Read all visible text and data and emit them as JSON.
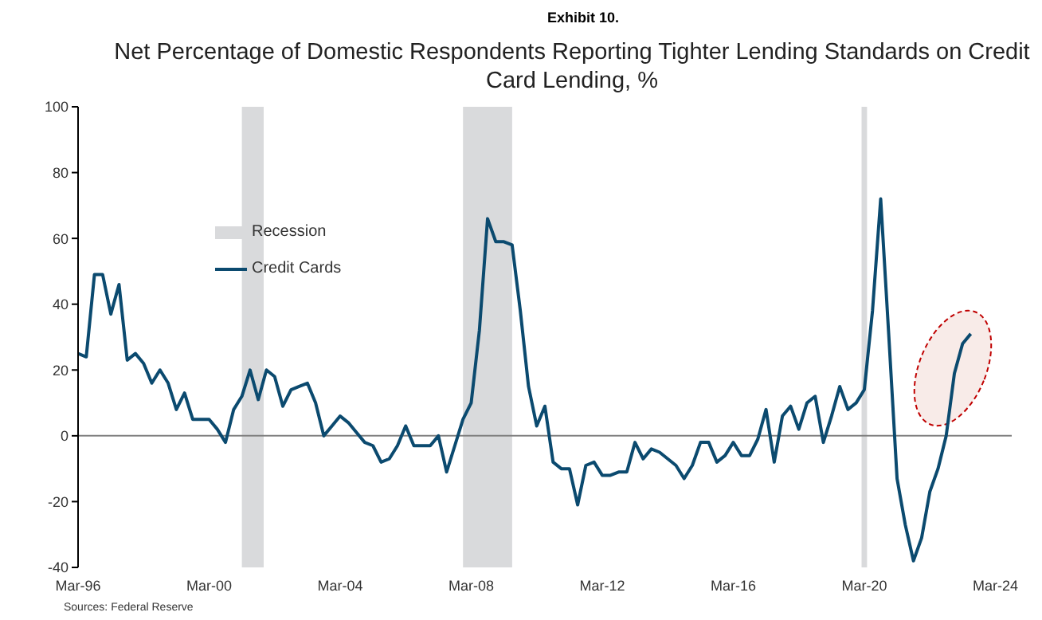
{
  "chart_data": {
    "type": "line",
    "subtitle": "Exhibit 10.",
    "title": "Net Percentage of Domestic Respondents Reporting Tighter Lending Standards on Credit Card Lending, %",
    "x": [
      "1996-03",
      "1996-06",
      "1996-09",
      "1996-12",
      "1997-03",
      "1997-06",
      "1997-09",
      "1997-12",
      "1998-03",
      "1998-06",
      "1998-09",
      "1998-12",
      "1999-03",
      "1999-06",
      "1999-09",
      "1999-12",
      "2000-03",
      "2000-06",
      "2000-09",
      "2000-12",
      "2001-03",
      "2001-06",
      "2001-09",
      "2001-12",
      "2002-03",
      "2002-06",
      "2002-09",
      "2002-12",
      "2003-03",
      "2003-06",
      "2003-09",
      "2003-12",
      "2004-03",
      "2004-06",
      "2004-09",
      "2004-12",
      "2005-03",
      "2005-06",
      "2005-09",
      "2005-12",
      "2006-03",
      "2006-06",
      "2006-09",
      "2006-12",
      "2007-03",
      "2007-06",
      "2007-09",
      "2007-12",
      "2008-03",
      "2008-06",
      "2008-09",
      "2008-12",
      "2009-03",
      "2009-06",
      "2009-09",
      "2009-12",
      "2010-03",
      "2010-06",
      "2010-09",
      "2010-12",
      "2011-03",
      "2011-06",
      "2011-09",
      "2011-12",
      "2012-03",
      "2012-06",
      "2012-09",
      "2012-12",
      "2013-03",
      "2013-06",
      "2013-09",
      "2013-12",
      "2014-03",
      "2014-06",
      "2014-09",
      "2014-12",
      "2015-03",
      "2015-06",
      "2015-09",
      "2015-12",
      "2016-03",
      "2016-06",
      "2016-09",
      "2016-12",
      "2017-03",
      "2017-06",
      "2017-09",
      "2017-12",
      "2018-03",
      "2018-06",
      "2018-09",
      "2018-12",
      "2019-03",
      "2019-06",
      "2019-09",
      "2019-12",
      "2020-03",
      "2020-06",
      "2020-09",
      "2020-12",
      "2021-03",
      "2021-06",
      "2021-09",
      "2021-12",
      "2022-03",
      "2022-06",
      "2022-09",
      "2022-12",
      "2023-03",
      "2023-06"
    ],
    "series": [
      {
        "name": "Credit Cards",
        "color": "#0b4a6f",
        "values": [
          25,
          24,
          49,
          49,
          37,
          46,
          23,
          25,
          22,
          16,
          20,
          16,
          8,
          13,
          5,
          5,
          5,
          2,
          -2,
          8,
          12,
          20,
          11,
          20,
          18,
          9,
          14,
          15,
          16,
          10,
          0,
          3,
          6,
          4,
          1,
          -2,
          -3,
          -8,
          -7,
          -3,
          3,
          -3,
          -3,
          -3,
          0,
          -11,
          -3,
          5,
          10,
          32,
          66,
          59,
          59,
          58,
          38,
          15,
          3,
          9,
          -8,
          -10,
          -10,
          -21,
          -9,
          -8,
          -12,
          -12,
          -11,
          -11,
          -2,
          -7,
          -4,
          -5,
          -7,
          -9,
          -13,
          -9,
          -2,
          -2,
          -8,
          -6,
          -2,
          -6,
          -6,
          -1,
          8,
          -8,
          6,
          9,
          2,
          10,
          12,
          -2,
          6,
          15,
          8,
          10,
          14,
          38,
          72,
          30,
          -13,
          -27,
          -38,
          -31,
          -17,
          -10,
          0,
          19,
          28,
          31
        ]
      }
    ],
    "xlim": [
      "1996-03",
      "2024-09"
    ],
    "xticks": [
      {
        "value": "1996-03",
        "label": "Mar-96"
      },
      {
        "value": "2000-03",
        "label": "Mar-00"
      },
      {
        "value": "2004-03",
        "label": "Mar-04"
      },
      {
        "value": "2008-03",
        "label": "Mar-08"
      },
      {
        "value": "2012-03",
        "label": "Mar-12"
      },
      {
        "value": "2016-03",
        "label": "Mar-16"
      },
      {
        "value": "2020-03",
        "label": "Mar-20"
      },
      {
        "value": "2024-03",
        "label": "Mar-24"
      }
    ],
    "ylim": [
      -40,
      100
    ],
    "yticks": [
      -40,
      -20,
      0,
      20,
      40,
      60,
      80,
      100
    ],
    "bands": [
      {
        "axis": "x",
        "from": "2001-03",
        "to": "2001-11",
        "label": "Recession",
        "color": "#d9dadc"
      },
      {
        "axis": "x",
        "from": "2007-12",
        "to": "2009-06",
        "color": "#d9dadc"
      },
      {
        "axis": "x",
        "from": "2020-02",
        "to": "2020-04",
        "color": "#d9dadc"
      }
    ],
    "ref_lines": [
      {
        "axis": "y",
        "value": 0,
        "color": "#808080"
      }
    ],
    "grid": false,
    "legend": "top left",
    "marker": "none",
    "line_style": "solid",
    "annotations": [
      "Sources: Federal Reserve"
    ]
  }
}
